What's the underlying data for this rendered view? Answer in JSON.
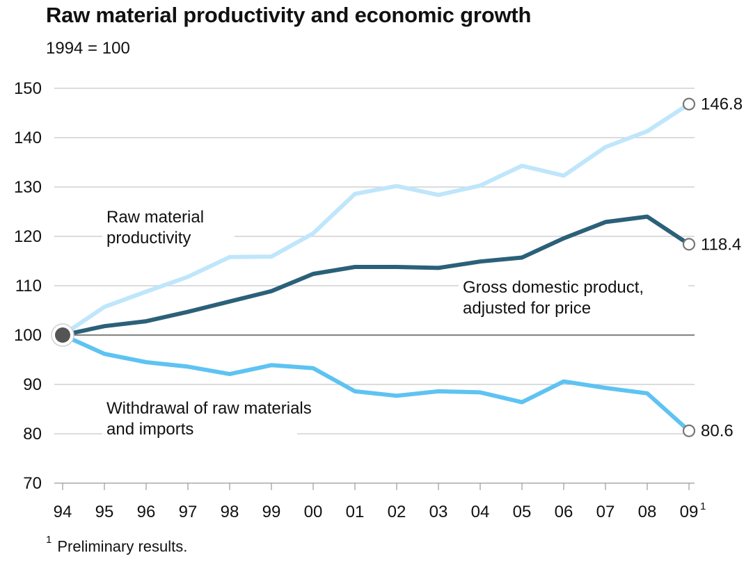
{
  "chart_data": {
    "type": "line",
    "title": "Raw material productivity and economic growth",
    "subtitle": "1994 = 100",
    "x": [
      "94",
      "95",
      "96",
      "97",
      "98",
      "99",
      "00",
      "01",
      "02",
      "03",
      "04",
      "05",
      "06",
      "07",
      "08",
      "09"
    ],
    "x_last_footnote_marker": "1",
    "ylim": [
      70,
      150
    ],
    "yticks": [
      70,
      80,
      90,
      100,
      110,
      120,
      130,
      140,
      150
    ],
    "grid": true,
    "baseline": 100,
    "series": [
      {
        "name": "Raw material productivity",
        "label_lines": [
          "Raw material",
          "productivity"
        ],
        "color": "#bfe6fb",
        "values": [
          100,
          105.7,
          108.8,
          111.8,
          115.8,
          115.9,
          120.6,
          128.6,
          130.2,
          128.4,
          130.3,
          134.3,
          132.3,
          138.1,
          141.3,
          146.8
        ],
        "end_label": "146.8"
      },
      {
        "name": "Gross domestic product, adjusted for price",
        "label_lines": [
          "Gross domestic product,",
          "adjusted for price"
        ],
        "color": "#2b6079",
        "values": [
          100,
          101.8,
          102.8,
          104.7,
          106.8,
          108.9,
          112.4,
          113.8,
          113.8,
          113.6,
          114.9,
          115.7,
          119.6,
          122.9,
          124.0,
          118.4
        ],
        "end_label": "118.4"
      },
      {
        "name": "Withdrawal of raw materials and imports",
        "label_lines": [
          "Withdrawal of raw materials",
          "and imports"
        ],
        "color": "#5ec3f2",
        "values": [
          100,
          96.2,
          94.5,
          93.6,
          92.1,
          93.9,
          93.3,
          88.6,
          87.7,
          88.6,
          88.4,
          86.4,
          90.6,
          89.3,
          88.2,
          80.6
        ],
        "end_label": "80.6"
      }
    ]
  },
  "footnote": {
    "marker": "1",
    "text": "Preliminary results."
  },
  "colors": {
    "grid": "#c8c8c8",
    "baseline": "#888888",
    "axis": "#999999",
    "start_marker": "#555555",
    "end_marker_stroke": "#777777"
  }
}
